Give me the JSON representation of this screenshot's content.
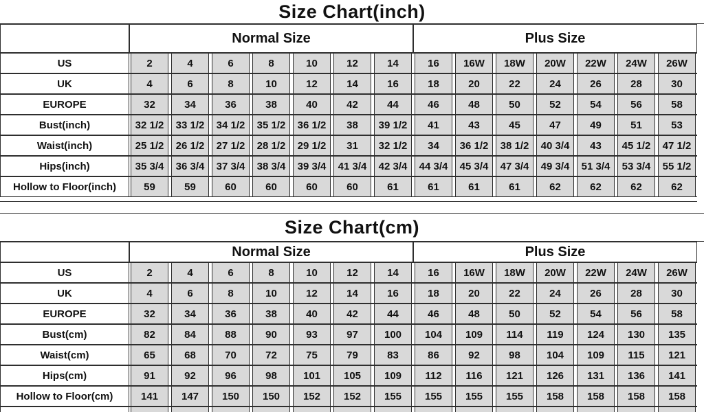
{
  "colors": {
    "cell_fill": "#d9d9d9",
    "border": "#2e2e2e",
    "text": "#111111",
    "background": "#ffffff"
  },
  "tables": [
    {
      "id": "inch",
      "title": "Size Chart(inch)",
      "group_headers": [
        "Normal Size",
        "Plus Size"
      ],
      "normal_size_span": 7,
      "plus_size_span": 7,
      "rows": [
        {
          "label": "US",
          "values": [
            "2",
            "4",
            "6",
            "8",
            "10",
            "12",
            "14",
            "16",
            "16W",
            "18W",
            "20W",
            "22W",
            "24W",
            "26W"
          ]
        },
        {
          "label": "UK",
          "values": [
            "4",
            "6",
            "8",
            "10",
            "12",
            "14",
            "16",
            "18",
            "20",
            "22",
            "24",
            "26",
            "28",
            "30"
          ]
        },
        {
          "label": "EUROPE",
          "values": [
            "32",
            "34",
            "36",
            "38",
            "40",
            "42",
            "44",
            "46",
            "48",
            "50",
            "52",
            "54",
            "56",
            "58"
          ]
        },
        {
          "label": "Bust(inch)",
          "values": [
            "32 1/2",
            "33 1/2",
            "34 1/2",
            "35 1/2",
            "36 1/2",
            "38",
            "39 1/2",
            "41",
            "43",
            "45",
            "47",
            "49",
            "51",
            "53"
          ]
        },
        {
          "label": "Waist(inch)",
          "values": [
            "25 1/2",
            "26 1/2",
            "27 1/2",
            "28 1/2",
            "29 1/2",
            "31",
            "32 1/2",
            "34",
            "36 1/2",
            "38 1/2",
            "40 3/4",
            "43",
            "45 1/2",
            "47 1/2"
          ]
        },
        {
          "label": "Hips(inch)",
          "values": [
            "35 3/4",
            "36 3/4",
            "37 3/4",
            "38 3/4",
            "39 3/4",
            "41 3/4",
            "42 3/4",
            "44 3/4",
            "45 3/4",
            "47 3/4",
            "49 3/4",
            "51 3/4",
            "53 3/4",
            "55 1/2"
          ]
        },
        {
          "label": "Hollow to Floor(inch)",
          "values": [
            "59",
            "59",
            "60",
            "60",
            "60",
            "60",
            "61",
            "61",
            "61",
            "61",
            "62",
            "62",
            "62",
            "62"
          ]
        }
      ]
    },
    {
      "id": "cm",
      "title": "Size Chart(cm)",
      "group_headers": [
        "Normal Size",
        "Plus Size"
      ],
      "normal_size_span": 7,
      "plus_size_span": 7,
      "rows": [
        {
          "label": "US",
          "values": [
            "2",
            "4",
            "6",
            "8",
            "10",
            "12",
            "14",
            "16",
            "16W",
            "18W",
            "20W",
            "22W",
            "24W",
            "26W"
          ]
        },
        {
          "label": "UK",
          "values": [
            "4",
            "6",
            "8",
            "10",
            "12",
            "14",
            "16",
            "18",
            "20",
            "22",
            "24",
            "26",
            "28",
            "30"
          ]
        },
        {
          "label": "EUROPE",
          "values": [
            "32",
            "34",
            "36",
            "38",
            "40",
            "42",
            "44",
            "46",
            "48",
            "50",
            "52",
            "54",
            "56",
            "58"
          ]
        },
        {
          "label": "Bust(cm)",
          "values": [
            "82",
            "84",
            "88",
            "90",
            "93",
            "97",
            "100",
            "104",
            "109",
            "114",
            "119",
            "124",
            "130",
            "135"
          ]
        },
        {
          "label": "Waist(cm)",
          "values": [
            "65",
            "68",
            "70",
            "72",
            "75",
            "79",
            "83",
            "86",
            "92",
            "98",
            "104",
            "109",
            "115",
            "121"
          ]
        },
        {
          "label": "Hips(cm)",
          "values": [
            "91",
            "92",
            "96",
            "98",
            "101",
            "105",
            "109",
            "112",
            "116",
            "121",
            "126",
            "131",
            "136",
            "141"
          ]
        },
        {
          "label": "Hollow to Floor(cm)",
          "values": [
            "141",
            "147",
            "150",
            "150",
            "152",
            "152",
            "155",
            "155",
            "155",
            "155",
            "158",
            "158",
            "158",
            "158"
          ]
        }
      ]
    }
  ]
}
